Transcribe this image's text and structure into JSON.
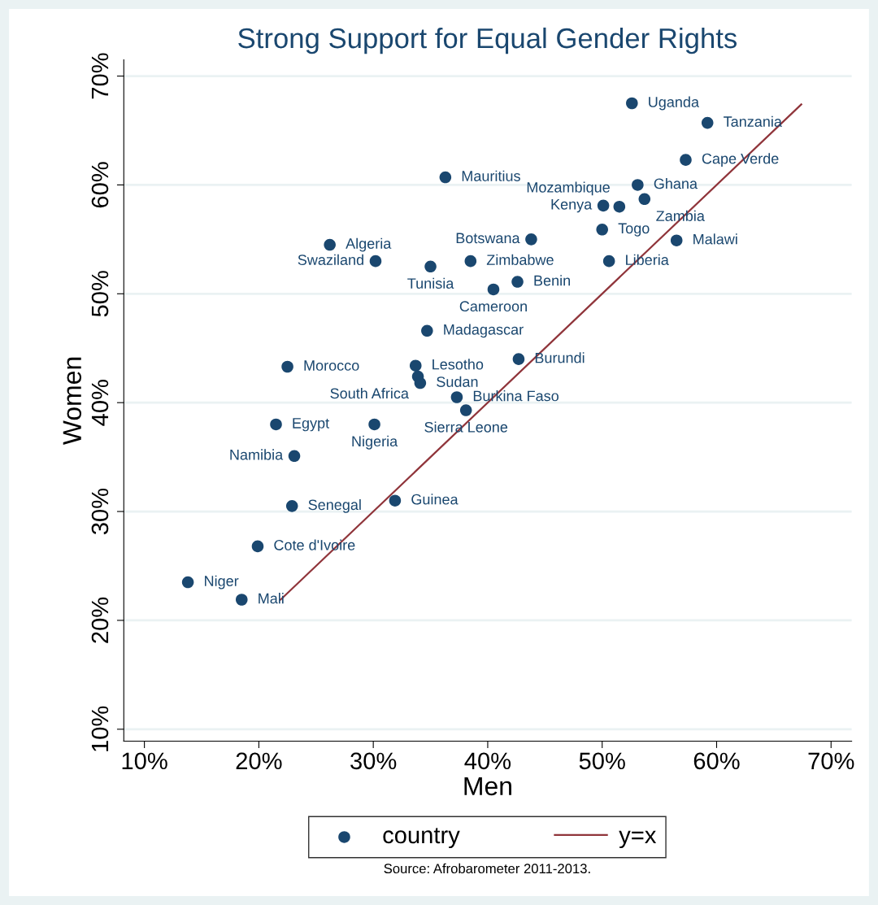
{
  "chart_data": {
    "type": "scatter",
    "title": "Strong Support for Equal Gender Rights",
    "xlabel": "Men",
    "ylabel": "Women",
    "xlim": [
      8.2,
      71.8
    ],
    "ylim": [
      8.9,
      71.5
    ],
    "xticks": [
      {
        "value": 10,
        "label": "10%"
      },
      {
        "value": 20,
        "label": "20%"
      },
      {
        "value": 30,
        "label": "30%"
      },
      {
        "value": 40,
        "label": "40%"
      },
      {
        "value": 50,
        "label": "50%"
      },
      {
        "value": 60,
        "label": "60%"
      },
      {
        "value": 70,
        "label": "70%"
      }
    ],
    "yticks": [
      {
        "value": 10,
        "label": "10%"
      },
      {
        "value": 20,
        "label": "20%"
      },
      {
        "value": 30,
        "label": "30%"
      },
      {
        "value": 40,
        "label": "40%"
      },
      {
        "value": 50,
        "label": "50%"
      },
      {
        "value": 60,
        "label": "60%"
      },
      {
        "value": 70,
        "label": "70%"
      }
    ],
    "grid": "y",
    "legend": "bottom",
    "series": [
      {
        "name": "country",
        "type": "scatter",
        "marker": "circle",
        "color": "#1a476f",
        "x": [
          52.6,
          59.2,
          57.3,
          53.1,
          53.7,
          50.1,
          51.5,
          36.3,
          50.0,
          43.8,
          56.5,
          26.2,
          30.2,
          38.5,
          50.6,
          35.0,
          42.6,
          40.5,
          34.7,
          42.7,
          22.5,
          33.7,
          33.9,
          34.1,
          37.3,
          38.1,
          21.5,
          30.1,
          23.1,
          31.9,
          22.9,
          19.9,
          13.8,
          18.5
        ],
        "values": [
          67.5,
          65.7,
          62.3,
          60.0,
          58.7,
          58.1,
          58.0,
          60.7,
          55.9,
          55.0,
          54.9,
          54.5,
          53.0,
          53.0,
          53.0,
          52.5,
          51.1,
          50.4,
          46.6,
          44.0,
          43.3,
          43.4,
          42.4,
          41.8,
          40.5,
          39.3,
          38.0,
          38.0,
          35.1,
          31.0,
          30.5,
          26.8,
          23.5,
          21.9
        ]
      },
      {
        "name": "y=x",
        "type": "line",
        "color": "#90353b",
        "line_style": "solid",
        "x": [
          21.9,
          67.4
        ],
        "values": [
          21.9,
          67.4
        ]
      }
    ],
    "annotations": [
      {
        "text": "Uganda",
        "x": 52.6,
        "y": 67.5
      },
      {
        "text": "Tanzania",
        "x": 59.2,
        "y": 65.7
      },
      {
        "text": "Cape Verde",
        "x": 57.3,
        "y": 62.3
      },
      {
        "text": "Ghana",
        "x": 53.1,
        "y": 60.0
      },
      {
        "text": "Zambia",
        "x": 53.7,
        "y": 58.7
      },
      {
        "text": "Kenya",
        "x": 50.1,
        "y": 58.1
      },
      {
        "text": "Mozambique",
        "x": 51.5,
        "y": 58.0
      },
      {
        "text": "Mauritius",
        "x": 36.3,
        "y": 60.7
      },
      {
        "text": "Togo",
        "x": 50.0,
        "y": 55.9
      },
      {
        "text": "Botswana",
        "x": 43.8,
        "y": 55.0
      },
      {
        "text": "Malawi",
        "x": 56.5,
        "y": 54.9
      },
      {
        "text": "Algeria",
        "x": 26.2,
        "y": 54.5
      },
      {
        "text": "Swaziland",
        "x": 30.2,
        "y": 53.0
      },
      {
        "text": "Zimbabwe",
        "x": 38.5,
        "y": 53.0
      },
      {
        "text": "Liberia",
        "x": 50.6,
        "y": 53.0
      },
      {
        "text": "Tunisia",
        "x": 35.0,
        "y": 52.5
      },
      {
        "text": "Benin",
        "x": 42.6,
        "y": 51.1
      },
      {
        "text": "Cameroon",
        "x": 40.5,
        "y": 50.4
      },
      {
        "text": "Madagascar",
        "x": 34.7,
        "y": 46.6
      },
      {
        "text": "Burundi",
        "x": 42.7,
        "y": 44.0
      },
      {
        "text": "Morocco",
        "x": 22.5,
        "y": 43.3
      },
      {
        "text": "Lesotho",
        "x": 33.7,
        "y": 43.4
      },
      {
        "text": "South Africa",
        "x": 33.9,
        "y": 42.4
      },
      {
        "text": "Sudan",
        "x": 34.1,
        "y": 41.8
      },
      {
        "text": "Burkina Faso",
        "x": 37.3,
        "y": 40.5
      },
      {
        "text": "Sierra Leone",
        "x": 38.1,
        "y": 39.3
      },
      {
        "text": "Egypt",
        "x": 21.5,
        "y": 38.0
      },
      {
        "text": "Nigeria",
        "x": 30.1,
        "y": 38.0
      },
      {
        "text": "Namibia",
        "x": 23.1,
        "y": 35.1
      },
      {
        "text": "Guinea",
        "x": 31.9,
        "y": 31.0
      },
      {
        "text": "Senegal",
        "x": 22.9,
        "y": 30.5
      },
      {
        "text": "Cote d'Ivoire",
        "x": 19.9,
        "y": 26.8
      },
      {
        "text": "Niger",
        "x": 13.8,
        "y": 23.5
      },
      {
        "text": "Mali",
        "x": 18.5,
        "y": 21.9
      },
      "Source: Afrobarometer 2011-2013."
    ]
  }
}
